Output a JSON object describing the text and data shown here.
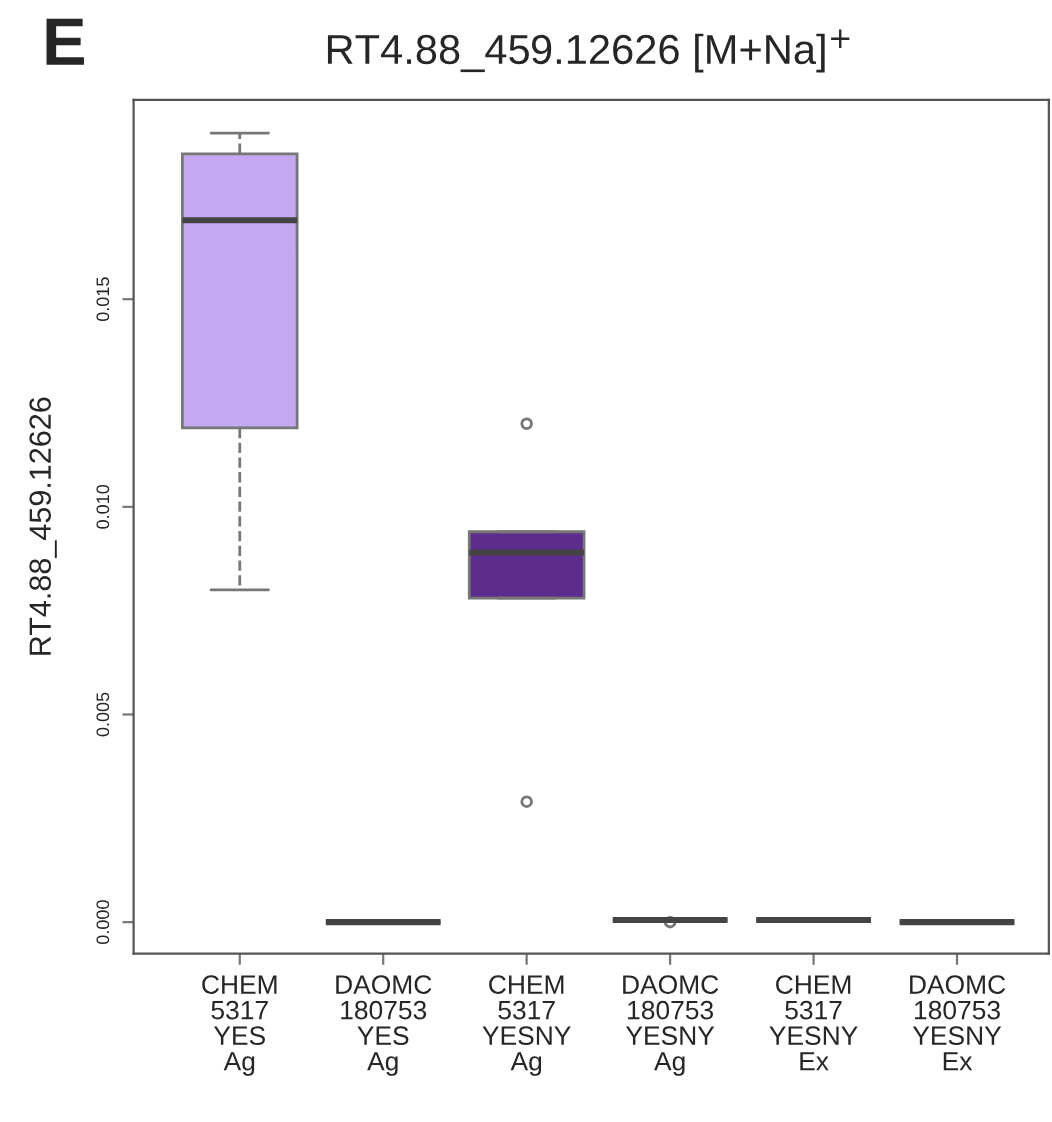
{
  "chart_data": {
    "type": "box",
    "title": "RT4.88_459.12626 [M+Na]$^{+}$",
    "ylabel": "RT4.88_459.12626",
    "annotations": [
      "E"
    ],
    "categories": [
      "CHEM\n5317\nYES\nAg",
      "DAOMC\n180753\nYES\nAg",
      "CHEM\n5317\nYESNY\nAg",
      "DAOMC\n180753\nYESNY\nAg",
      "CHEM\n5317\nYESNY\nEx",
      "DAOMC\n180753\nYESNY\nEx"
    ],
    "colors": [
      "#c4a8f0",
      "#777777",
      "#5c2d8c",
      "#777777",
      "#777777",
      "#777777"
    ],
    "boxes": [
      {
        "low": 0.008,
        "q1": 0.0119,
        "median": 0.0169,
        "q3": 0.0185,
        "high": 0.019
      },
      {
        "low": 0.0,
        "q1": 0.0,
        "median": 0.0,
        "q3": 0.0,
        "high": 0.0
      },
      {
        "low": 0.0078,
        "q1": 0.0078,
        "median": 0.0089,
        "q3": 0.0094,
        "high": 0.0094,
        "outliers": [
          0.012,
          0.0029
        ]
      },
      {
        "low": 5e-05,
        "q1": 5e-05,
        "median": 5e-05,
        "q3": 5e-05,
        "high": 5e-05,
        "outliers": [
          0.0
        ]
      },
      {
        "low": 5e-05,
        "q1": 5e-05,
        "median": 5e-05,
        "q3": 5e-05,
        "high": 5e-05
      },
      {
        "low": 0.0,
        "q1": 0.0,
        "median": 0.0,
        "q3": 0.0,
        "high": 0.0
      }
    ],
    "ylim": [
      -0.00076,
      0.0198
    ],
    "yticks": [
      {
        "value": 0,
        "label": "0.000"
      },
      {
        "value": 0.005,
        "label": "0.005"
      },
      {
        "value": 0.01,
        "label": "0.010"
      },
      {
        "value": 0.015,
        "label": "0.015"
      }
    ],
    "grid": false,
    "legend": false
  }
}
